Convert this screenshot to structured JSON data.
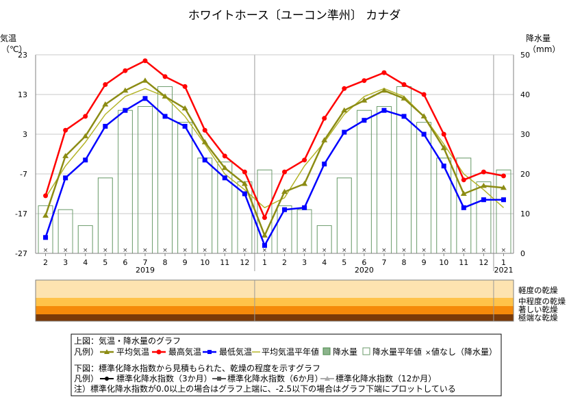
{
  "title": "ホワイトホース〔ユーコン準州〕 カナダ",
  "y_left_label_1": "気温",
  "y_left_label_2": "（℃）",
  "y_right_label_1": "降水量",
  "y_right_label_2": "（mm）",
  "missing_marker": "×",
  "drought_levels": [
    "軽度の乾燥",
    "中程度の乾燥",
    "著しい乾燥",
    "極端な乾燥"
  ],
  "colors": {
    "avg": "#8c8c14",
    "max": "#ff0000",
    "min": "#0000ff",
    "normal_temp": "#b4b428",
    "precip_fill": "#8cb48c",
    "precip_edge": "#4a8a4a",
    "normal_precip_edge": "#6a9a6a",
    "band1": "#fde3b0",
    "band2": "#ffc34a",
    "band3": "#f58a0a",
    "band4": "#7a3a08"
  },
  "legend": {
    "line1": "上図：気温・降水量のグラフ",
    "hanrei": "凡例）",
    "avg": "平均気温",
    "max": "最高気温",
    "min": "最低気温",
    "normal_temp": "平均気温平年値",
    "precip": "降水量",
    "normal_precip": "降水量平年値",
    "no_value": "値なし（降水量）",
    "line2": "下図：標準化降水指数から見積もられた、乾燥の程度を示すグラフ",
    "hanrei2": "凡例）",
    "spi3": "標準化降水指数（3か月）",
    "spi6": "標準化降水指数（6か月）",
    "spi12": "標準化降水指数（12か月）",
    "note": "注）標準化降水指数が0.0以上の場合はグラフ上端に、-2.5以下の場合はグラフ下端にプロットしている"
  },
  "chart_data": {
    "type": "line",
    "x": [
      "2019-02",
      "2019-03",
      "2019-04",
      "2019-05",
      "2019-06",
      "2019-07",
      "2019-08",
      "2019-09",
      "2019-10",
      "2019-11",
      "2019-12",
      "2020-01",
      "2020-02",
      "2020-03",
      "2020-04",
      "2020-05",
      "2020-06",
      "2020-07",
      "2020-08",
      "2020-09",
      "2020-10",
      "2020-11",
      "2020-12",
      "2021-01"
    ],
    "x_tick_labels": [
      "2",
      "3",
      "4",
      "5",
      "6",
      "7",
      "8",
      "9",
      "10",
      "11",
      "12",
      "1",
      "2",
      "3",
      "4",
      "5",
      "6",
      "7",
      "8",
      "9",
      "10",
      "11",
      "12",
      "1"
    ],
    "year_labels": [
      {
        "label": "2019",
        "at": 5
      },
      {
        "label": "2020",
        "at": 16
      },
      {
        "label": "2021",
        "at": 23
      }
    ],
    "y_left": {
      "min": -27,
      "max": 23,
      "ticks": [
        23,
        13,
        3,
        -7,
        -17,
        -27
      ]
    },
    "y_right": {
      "min": 0,
      "max": 50,
      "ticks": [
        50,
        40,
        30,
        20,
        10,
        0
      ]
    },
    "series": [
      {
        "name": "平均気温",
        "axis": "left",
        "values": [
          -17.5,
          -2.5,
          2.5,
          10.5,
          14.0,
          16.5,
          12.5,
          9.5,
          1.0,
          -5.5,
          -9.5,
          -22.5,
          -11.5,
          -9.5,
          1.5,
          9.0,
          11.5,
          14.0,
          12.0,
          7.5,
          -0.5,
          -12.0,
          -10.0,
          -10.5
        ]
      },
      {
        "name": "最高気温",
        "axis": "left",
        "values": [
          -12.5,
          4.0,
          7.5,
          15.5,
          19.0,
          21.5,
          17.5,
          15.0,
          4.0,
          -2.5,
          -6.5,
          -18.0,
          -6.5,
          -3.5,
          7.0,
          14.5,
          16.5,
          18.5,
          15.5,
          13.0,
          3.0,
          -8.5,
          -6.5,
          -7.5
        ]
      },
      {
        "name": "最低気温",
        "axis": "left",
        "values": [
          -23.0,
          -8.0,
          -3.5,
          5.0,
          9.0,
          12.0,
          7.5,
          5.0,
          -3.5,
          -8.0,
          -12.0,
          -25.0,
          -16.0,
          -15.5,
          -4.5,
          3.5,
          6.5,
          9.0,
          7.5,
          3.0,
          -5.0,
          -15.5,
          -13.5,
          -13.5
        ]
      },
      {
        "name": "平均気温平年値",
        "axis": "left",
        "values": [
          -13.0,
          -5.0,
          1.0,
          8.0,
          12.5,
          14.5,
          12.5,
          7.5,
          0.5,
          -7.0,
          -11.0,
          -15.5,
          -13.0,
          -5.0,
          1.0,
          8.0,
          12.5,
          14.5,
          12.5,
          7.5,
          0.5,
          -7.0,
          -11.0,
          -15.5
        ]
      },
      {
        "name": "降水量",
        "axis": "right",
        "type": "bar",
        "values": [
          12,
          11,
          7,
          19,
          36,
          37,
          42,
          33,
          24,
          23,
          18,
          21,
          12,
          11,
          7,
          19,
          36,
          37,
          42,
          33,
          24,
          24,
          18,
          21
        ]
      },
      {
        "name": "降水量平年値",
        "axis": "right",
        "type": "bar",
        "values": [
          12,
          11,
          7,
          19,
          36,
          37,
          42,
          33,
          24,
          23,
          18,
          21,
          12,
          11,
          7,
          19,
          36,
          37,
          42,
          33,
          24,
          24,
          18,
          21
        ]
      }
    ],
    "precip_missing": true,
    "drought_panel": {
      "levels": [
        "軽度の乾燥",
        "中程度の乾燥",
        "著しい乾燥",
        "極端な乾燥"
      ],
      "spi_series": []
    }
  }
}
